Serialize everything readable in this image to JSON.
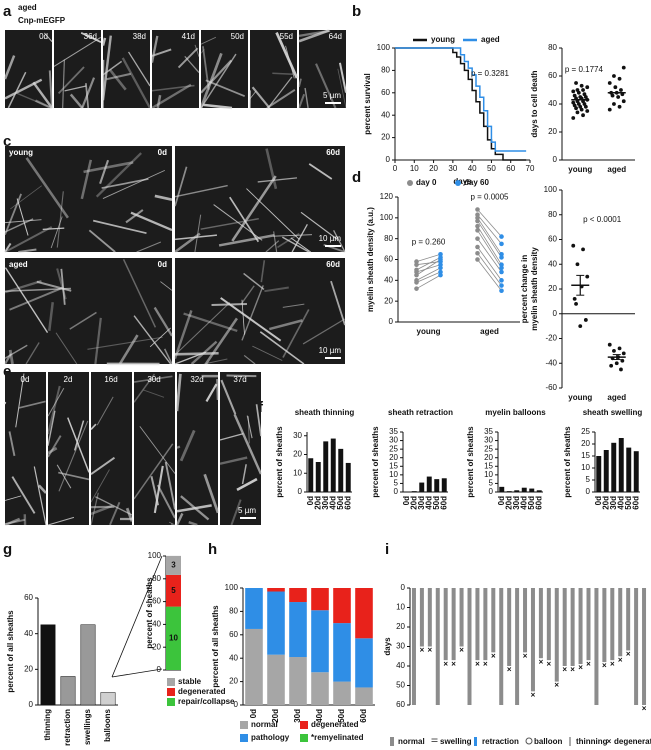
{
  "panel_labels": [
    "a",
    "b",
    "c",
    "d",
    "e",
    "f",
    "g",
    "h",
    "i"
  ],
  "image_panels": {
    "a": {
      "title": "aged",
      "subtitle": "Cnp-mEGFP",
      "frames": [
        "0d",
        "36d",
        "38d",
        "41d",
        "50d",
        "55d",
        "64d"
      ],
      "scale": "5 µm"
    },
    "c": {
      "rows": [
        {
          "label": "young",
          "frames": [
            "0d",
            "60d"
          ],
          "scale": "10 µm"
        },
        {
          "label": "aged",
          "frames": [
            "0d",
            "60d"
          ],
          "scale": "10 µm"
        }
      ]
    },
    "e": {
      "frames": [
        "0d",
        "2d",
        "16d",
        "30d",
        "32d",
        "37d"
      ],
      "scale": "5 µm"
    }
  },
  "chart_data": [
    {
      "type": "line",
      "xlabel": "days",
      "ylabel": "percent survival",
      "annotations": [
        "p = 0.3281"
      ],
      "xlim": [
        0,
        70
      ],
      "xticks": [
        0,
        10,
        20,
        30,
        40,
        50,
        60,
        70
      ],
      "ylim": [
        0,
        100
      ],
      "yticks": [
        0,
        20,
        40,
        60,
        80,
        100
      ],
      "series": [
        {
          "name": "young",
          "color": "#111111",
          "x": [
            0,
            28,
            30,
            32,
            34,
            36,
            38,
            40,
            42,
            44,
            46,
            48,
            50,
            52,
            56,
            68
          ],
          "values": [
            100,
            100,
            96,
            92,
            86,
            80,
            72,
            62,
            52,
            42,
            30,
            18,
            10,
            5,
            0,
            0
          ]
        },
        {
          "name": "aged",
          "color": "#2f8ee6",
          "x": [
            0,
            30,
            34,
            36,
            38,
            40,
            42,
            44,
            46,
            48,
            50,
            52,
            68
          ],
          "values": [
            100,
            100,
            94,
            88,
            82,
            76,
            66,
            56,
            44,
            30,
            16,
            8,
            8
          ]
        }
      ]
    },
    {
      "type": "strip",
      "ylabel": "days to cell death",
      "annotations": [
        "p = 0.1774"
      ],
      "categories": [
        "young",
        "aged"
      ],
      "ylim": [
        0,
        80
      ],
      "yticks": [
        0,
        20,
        40,
        60,
        80
      ],
      "values": [
        [
          30,
          32,
          34,
          35,
          36,
          37,
          38,
          38,
          39,
          40,
          40,
          41,
          42,
          42,
          43,
          44,
          44,
          45,
          45,
          46,
          47,
          48,
          49,
          50,
          50,
          52,
          53,
          55
        ],
        [
          36,
          38,
          40,
          42,
          45,
          46,
          47,
          48,
          48,
          50,
          52,
          55,
          58,
          60,
          66
        ]
      ],
      "means": [
        43,
        48
      ],
      "color": "#111111"
    },
    {
      "type": "paired",
      "ylabel": "myelin sheath density (a.u.)",
      "annotations": [
        "p = 0.260",
        "p = 0.0005"
      ],
      "categories": [
        "young",
        "aged"
      ],
      "ylim": [
        0,
        120
      ],
      "yticks": [
        0,
        20,
        40,
        60,
        80,
        100,
        120
      ],
      "series": [
        {
          "name": "day 0",
          "color": "#8c8c8c",
          "values": [
            [
              32,
              38,
              40,
              45,
              48,
              50,
              55,
              58
            ],
            [
              60,
              66,
              72,
              80,
              88,
              92,
              97,
              100,
              103,
              108
            ]
          ]
        },
        {
          "name": "day 60",
          "color": "#2f8ee6",
          "values": [
            [
              45,
              48,
              52,
              60,
              55,
              62,
              58,
              65
            ],
            [
              30,
              35,
              40,
              48,
              52,
              55,
              62,
              65,
              75,
              82
            ]
          ]
        }
      ]
    },
    {
      "type": "strip",
      "ylabel": [
        "percent change in",
        "myelin sheath density"
      ],
      "annotations": [
        "p < 0.0001"
      ],
      "categories": [
        "young",
        "aged"
      ],
      "ylim": [
        -60,
        100
      ],
      "yticks": [
        -60,
        -40,
        -20,
        0,
        20,
        40,
        60,
        80,
        100
      ],
      "values": [
        [
          55,
          52,
          40,
          30,
          22,
          8,
          -5,
          -10,
          12
        ],
        [
          -25,
          -28,
          -30,
          -32,
          -35,
          -36,
          -38,
          -40,
          -42,
          -45
        ]
      ],
      "means": [
        23,
        -35
      ],
      "errors": [
        8,
        2
      ],
      "color": "#111111"
    },
    {
      "type": "bar",
      "title": "sheath thinning",
      "ylabel": "percent of sheaths",
      "categories": [
        "0d",
        "20d",
        "30d",
        "40d",
        "50d",
        "60d"
      ],
      "values": [
        18,
        16,
        27,
        28.5,
        23,
        15.5
      ],
      "color": "#111111",
      "ylim": [
        0,
        32
      ],
      "yticks": [
        0,
        10,
        20,
        30
      ]
    },
    {
      "type": "bar",
      "title": "sheath retraction",
      "ylabel": "percent of sheaths",
      "categories": [
        "0d",
        "20d",
        "30d",
        "40d",
        "50d",
        "60d"
      ],
      "values": [
        0,
        0.5,
        5.5,
        9,
        7.5,
        8
      ],
      "color": "#111111",
      "ylim": [
        0,
        35
      ],
      "yticks": [
        0,
        5,
        10,
        15,
        20,
        25,
        30,
        35
      ]
    },
    {
      "type": "bar",
      "title": "myelin balloons",
      "ylabel": "percent of sheaths",
      "categories": [
        "0d",
        "20d",
        "30d",
        "40d",
        "50d",
        "60d"
      ],
      "values": [
        3,
        0.5,
        1,
        2.5,
        2,
        1
      ],
      "color": "#111111",
      "ylim": [
        0,
        35
      ],
      "yticks": [
        0,
        5,
        10,
        15,
        20,
        25,
        30,
        35
      ]
    },
    {
      "type": "bar",
      "title": "sheath swelling",
      "ylabel": "percent of sheaths",
      "categories": [
        "0d",
        "20d",
        "30d",
        "40d",
        "50d",
        "60d"
      ],
      "values": [
        15,
        17.5,
        20.5,
        22.5,
        18.5,
        17
      ],
      "color": "#111111",
      "ylim": [
        0,
        25
      ],
      "yticks": [
        0,
        5,
        10,
        15,
        20,
        25
      ]
    },
    {
      "type": "bar",
      "ylabel": "percent of all sheaths",
      "categories": [
        "thinning",
        "retraction",
        "swellings",
        "balloons"
      ],
      "values": [
        45,
        16,
        45,
        7
      ],
      "colors": [
        "#111111",
        "#999999",
        "#999999",
        "#d0d0d0"
      ],
      "ylim": [
        0,
        60
      ],
      "yticks": [
        0,
        20,
        40,
        60
      ]
    },
    {
      "type": "stacked",
      "ylabel": "percent of sheaths",
      "ylim": [
        0,
        100
      ],
      "yticks": [
        0,
        20,
        40,
        60,
        80,
        100
      ],
      "series": [
        {
          "name": "repair/collapse",
          "color": "#3cc43c",
          "values": [
            55.6
          ],
          "counts": [
            10
          ]
        },
        {
          "name": "degenerated",
          "color": "#e8221b",
          "values": [
            27.8
          ],
          "counts": [
            5
          ]
        },
        {
          "name": "stable",
          "color": "#a6a6a6",
          "values": [
            16.7
          ],
          "counts": [
            3
          ]
        }
      ]
    },
    {
      "type": "stacked",
      "ylabel": "percent of all sheaths",
      "categories": [
        "0d",
        "20d",
        "30d",
        "40d",
        "50d",
        "60d"
      ],
      "ylim": [
        0,
        100
      ],
      "yticks": [
        0,
        20,
        40,
        60,
        80,
        100
      ],
      "series": [
        {
          "name": "normal",
          "color": "#a6a6a6",
          "values": [
            65,
            43,
            41,
            28,
            20,
            15
          ]
        },
        {
          "name": "pathology",
          "color": "#2f8ee6",
          "values": [
            35,
            54,
            47,
            53,
            50,
            42
          ]
        },
        {
          "name": "degenerated",
          "color": "#e8221b",
          "values": [
            0,
            3,
            12,
            19,
            30,
            43
          ]
        },
        {
          "name": "*remyelinated",
          "color": "#3cc43c",
          "values": [
            0,
            0,
            0,
            0,
            0,
            0
          ]
        }
      ]
    },
    {
      "type": "timeline",
      "ylabel": "days",
      "ylim": [
        0,
        60
      ],
      "yticks": [
        0,
        10,
        20,
        30,
        40,
        50,
        60
      ],
      "legend_items": [
        "normal",
        "swelling",
        "retraction",
        "balloon",
        "thinning",
        "degenerated"
      ],
      "sheaths": [
        null,
        30,
        30,
        null,
        37,
        37,
        30,
        null,
        37,
        37,
        33,
        null,
        40,
        null,
        33,
        53,
        36,
        37,
        48,
        40,
        40,
        39,
        37,
        null,
        38,
        37,
        35,
        32,
        null,
        60
      ]
    }
  ]
}
